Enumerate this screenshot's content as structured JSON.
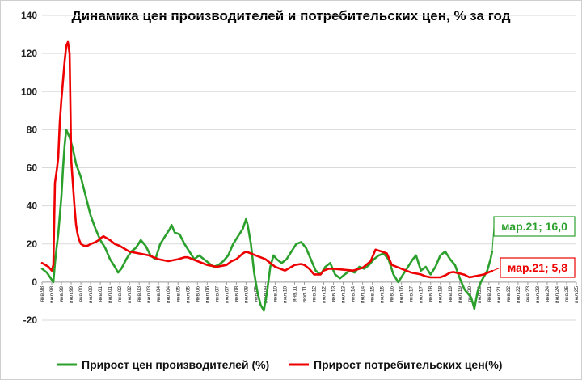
{
  "chart_data": {
    "type": "line",
    "title": "Динамика цен производителей и потребительских цен, % за год",
    "xlabel": "",
    "ylabel": "",
    "ylim": [
      -20,
      140
    ],
    "yticks": [
      -20,
      0,
      20,
      40,
      60,
      80,
      100,
      120,
      140
    ],
    "xlim_months": [
      "янв.98",
      "июл.25"
    ],
    "x_tick_labels": [
      "янв.98",
      "июл.98",
      "янв.99",
      "июл.99",
      "янв.00",
      "июл.00",
      "янв.01",
      "июл.01",
      "янв.02",
      "июл.02",
      "янв.03",
      "июл.03",
      "янв.04",
      "июл.04",
      "янв.05",
      "июл.05",
      "янв.06",
      "июл.06",
      "янв.07",
      "июл.07",
      "янв.08",
      "июл.08",
      "янв.09",
      "июл.09",
      "янв.10",
      "июл.10",
      "янв.11",
      "июл.11",
      "янв.12",
      "июл.12",
      "янв.13",
      "июл.13",
      "янв.14",
      "июл.14",
      "янв.15",
      "июл.15",
      "янв.16",
      "июл.16",
      "янв.17",
      "июл.17",
      "янв.18",
      "июл.18",
      "янв.19",
      "июл.19",
      "янв.20",
      "июл.20",
      "янв.21",
      "июл.21",
      "янв.22",
      "июл.22",
      "янв.23",
      "июл.23",
      "янв.24",
      "июл.24",
      "янв.25",
      "июл.25"
    ],
    "grid": "horizontal",
    "legend_position": "bottom",
    "series": [
      {
        "name": "Прирост цен производителей (%)",
        "color": "#2ca02c",
        "points": [
          [
            "янв.98",
            7
          ],
          [
            "апр.98",
            5
          ],
          [
            "авг.98",
            0
          ],
          [
            "сен.98",
            10
          ],
          [
            "окт.98",
            18
          ],
          [
            "ноя.98",
            25
          ],
          [
            "дек.98",
            35
          ],
          [
            "янв.99",
            45
          ],
          [
            "фев.99",
            60
          ],
          [
            "мар.99",
            72
          ],
          [
            "апр.99",
            80
          ],
          [
            "май.99",
            78
          ],
          [
            "июн.99",
            76
          ],
          [
            "авг.99",
            70
          ],
          [
            "окт.99",
            62
          ],
          [
            "янв.00",
            55
          ],
          [
            "апр.00",
            45
          ],
          [
            "июл.00",
            35
          ],
          [
            "окт.00",
            28
          ],
          [
            "янв.01",
            22
          ],
          [
            "апр.01",
            18
          ],
          [
            "июл.01",
            12
          ],
          [
            "окт.01",
            8
          ],
          [
            "дек.01",
            5
          ],
          [
            "фев.02",
            7
          ],
          [
            "май.02",
            12
          ],
          [
            "авг.02",
            16
          ],
          [
            "ноя.02",
            18
          ],
          [
            "фев.03",
            22
          ],
          [
            "май.03",
            19
          ],
          [
            "авг.03",
            14
          ],
          [
            "ноя.03",
            12
          ],
          [
            "фев.04",
            20
          ],
          [
            "май.04",
            24
          ],
          [
            "авг.04",
            28
          ],
          [
            "сен.04",
            30
          ],
          [
            "ноя.04",
            26
          ],
          [
            "фев.05",
            25
          ],
          [
            "май.05",
            20
          ],
          [
            "авг.05",
            16
          ],
          [
            "ноя.05",
            12
          ],
          [
            "фев.06",
            14
          ],
          [
            "май.06",
            12
          ],
          [
            "авг.06",
            10
          ],
          [
            "ноя.06",
            8
          ],
          [
            "фев.07",
            9
          ],
          [
            "май.07",
            11
          ],
          [
            "авг.07",
            14
          ],
          [
            "ноя.07",
            20
          ],
          [
            "фев.08",
            24
          ],
          [
            "май.08",
            28
          ],
          [
            "июл.08",
            33
          ],
          [
            "авг.08",
            30
          ],
          [
            "окт.08",
            20
          ],
          [
            "дек.08",
            5
          ],
          [
            "фев.09",
            -5
          ],
          [
            "апр.09",
            -12
          ],
          [
            "июн.09",
            -15
          ],
          [
            "авг.09",
            -5
          ],
          [
            "окт.09",
            8
          ],
          [
            "дек.09",
            14
          ],
          [
            "фев.10",
            12
          ],
          [
            "май.10",
            10
          ],
          [
            "авг.10",
            12
          ],
          [
            "ноя.10",
            16
          ],
          [
            "фев.11",
            20
          ],
          [
            "май.11",
            21
          ],
          [
            "авг.11",
            18
          ],
          [
            "ноя.11",
            12
          ],
          [
            "фев.12",
            6
          ],
          [
            "май.12",
            4
          ],
          [
            "авг.12",
            8
          ],
          [
            "ноя.12",
            10
          ],
          [
            "фев.13",
            4
          ],
          [
            "май.13",
            2
          ],
          [
            "авг.13",
            4
          ],
          [
            "ноя.13",
            6
          ],
          [
            "фев.14",
            5
          ],
          [
            "май.14",
            8
          ],
          [
            "авг.14",
            7
          ],
          [
            "ноя.14",
            9
          ],
          [
            "фев.15",
            12
          ],
          [
            "май.15",
            14
          ],
          [
            "авг.15",
            15
          ],
          [
            "ноя.15",
            12
          ],
          [
            "фев.16",
            4
          ],
          [
            "май.16",
            0
          ],
          [
            "авг.16",
            4
          ],
          [
            "ноя.16",
            8
          ],
          [
            "фев.17",
            12
          ],
          [
            "апр.17",
            14
          ],
          [
            "июл.17",
            6
          ],
          [
            "окт.17",
            8
          ],
          [
            "янв.18",
            4
          ],
          [
            "апр.18",
            8
          ],
          [
            "июл.18",
            14
          ],
          [
            "окт.18",
            16
          ],
          [
            "янв.19",
            12
          ],
          [
            "апр.19",
            9
          ],
          [
            "июл.19",
            2
          ],
          [
            "окт.19",
            -4
          ],
          [
            "дек.19",
            -6
          ],
          [
            "фев.20",
            -8
          ],
          [
            "апр.20",
            -14
          ],
          [
            "июн.20",
            -5
          ],
          [
            "авг.20",
            0
          ],
          [
            "окт.20",
            3
          ],
          [
            "дек.20",
            6
          ],
          [
            "фев.21",
            12
          ],
          [
            "мар.21",
            16
          ]
        ]
      },
      {
        "name": "Прирост потребительских цен(%)",
        "color": "#ee0000",
        "points": [
          [
            "янв.98",
            10
          ],
          [
            "май.98",
            8
          ],
          [
            "июл.98",
            6
          ],
          [
            "авг.98",
            9
          ],
          [
            "сен.98",
            52
          ],
          [
            "окт.98",
            58
          ],
          [
            "ноя.98",
            65
          ],
          [
            "дек.98",
            84
          ],
          [
            "янв.99",
            96
          ],
          [
            "фев.99",
            106
          ],
          [
            "мар.99",
            116
          ],
          [
            "апр.99",
            124
          ],
          [
            "май.99",
            126
          ],
          [
            "июн.99",
            120
          ],
          [
            "июл.99",
            64
          ],
          [
            "авг.99",
            52
          ],
          [
            "сен.99",
            40
          ],
          [
            "окт.99",
            30
          ],
          [
            "ноя.99",
            25
          ],
          [
            "дек.99",
            22
          ],
          [
            "янв.00",
            20
          ],
          [
            "мар.00",
            19
          ],
          [
            "май.00",
            19
          ],
          [
            "июл.00",
            20
          ],
          [
            "окт.00",
            21
          ],
          [
            "дек.00",
            22
          ],
          [
            "янв.01",
            23
          ],
          [
            "мар.01",
            24
          ],
          [
            "июл.01",
            22
          ],
          [
            "окт.01",
            20
          ],
          [
            "янв.02",
            19
          ],
          [
            "июл.02",
            16
          ],
          [
            "янв.03",
            15
          ],
          [
            "июл.03",
            14
          ],
          [
            "янв.04",
            12
          ],
          [
            "июл.04",
            11
          ],
          [
            "янв.05",
            12
          ],
          [
            "май.05",
            13
          ],
          [
            "июл.05",
            13
          ],
          [
            "янв.06",
            11
          ],
          [
            "июл.06",
            9
          ],
          [
            "янв.07",
            8
          ],
          [
            "июл.07",
            9
          ],
          [
            "окт.07",
            11
          ],
          [
            "янв.08",
            12
          ],
          [
            "май.08",
            15
          ],
          [
            "июл.08",
            16
          ],
          [
            "окт.08",
            15
          ],
          [
            "янв.09",
            14
          ],
          [
            "июл.09",
            12
          ],
          [
            "окт.09",
            10
          ],
          [
            "янв.10",
            8
          ],
          [
            "июл.10",
            6
          ],
          [
            "сен.10",
            7
          ],
          [
            "янв.11",
            9
          ],
          [
            "май.11",
            9.5
          ],
          [
            "июл.11",
            9
          ],
          [
            "окт.11",
            7
          ],
          [
            "янв.12",
            4
          ],
          [
            "май.12",
            4
          ],
          [
            "июл.12",
            6
          ],
          [
            "окт.12",
            7
          ],
          [
            "янв.13",
            7
          ],
          [
            "июл.13",
            6.5
          ],
          [
            "янв.14",
            6
          ],
          [
            "июл.14",
            7.5
          ],
          [
            "дек.14",
            11
          ],
          [
            "фев.15",
            15
          ],
          [
            "мар.15",
            17
          ],
          [
            "июл.15",
            16
          ],
          [
            "окт.15",
            15
          ],
          [
            "янв.16",
            9
          ],
          [
            "июл.16",
            7
          ],
          [
            "янв.17",
            5
          ],
          [
            "июл.17",
            4
          ],
          [
            "окт.17",
            3
          ],
          [
            "янв.18",
            2.5
          ],
          [
            "июл.18",
            2.5
          ],
          [
            "окт.18",
            3.5
          ],
          [
            "янв.19",
            5
          ],
          [
            "мар.19",
            5.3
          ],
          [
            "июл.19",
            4.5
          ],
          [
            "окт.19",
            3.8
          ],
          [
            "янв.20",
            2.5
          ],
          [
            "апр.20",
            3
          ],
          [
            "июл.20",
            3.5
          ],
          [
            "окт.20",
            4
          ],
          [
            "янв.21",
            5.2
          ],
          [
            "мар.21",
            5.8
          ]
        ]
      }
    ],
    "annotations": [
      {
        "text": "мар.21; 16,0",
        "series": "Прирост цен производителей (%)",
        "color": "#2ca02c"
      },
      {
        "text": "мар.21; 5,8",
        "series": "Прирост потребительских цен(%)",
        "color": "#ee0000"
      }
    ]
  }
}
